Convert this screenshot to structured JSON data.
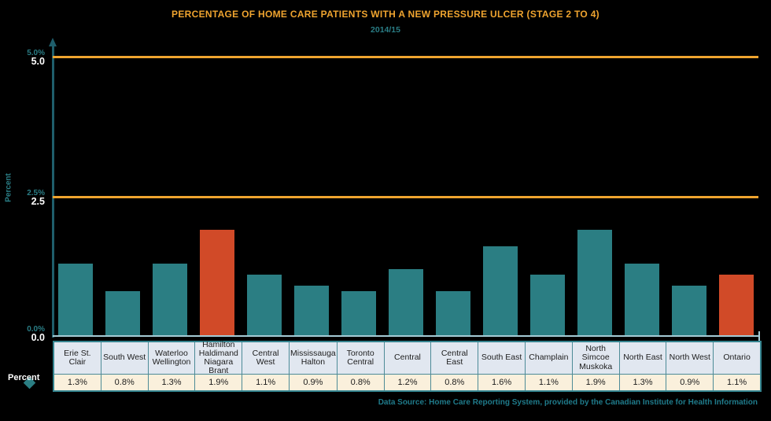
{
  "title": "PERCENTAGE OF HOME CARE PATIENTS WITH A NEW PRESSURE ULCER (STAGE 2 TO 4)",
  "subtitle": "2014/15",
  "axis": {
    "y_label": "Percent",
    "ticks_teal": [
      "5.0%",
      "2.5%",
      "0.0%"
    ],
    "ticks_white": [
      "5.0",
      "2.5",
      "0.0"
    ]
  },
  "legend": {
    "label": "Percent"
  },
  "footer": {
    "datasource": "Data Source: Home Care Reporting System, provided by the Canadian Institute for Health Information"
  },
  "chart_data": {
    "type": "bar",
    "title": "PERCENTAGE OF HOME CARE PATIENTS WITH A NEW PRESSURE ULCER (STAGE 2 TO 4)",
    "subtitle": "2014/15",
    "ylabel": "Percent",
    "ylim": [
      0,
      5
    ],
    "gridlines": [
      2.5,
      5.0
    ],
    "grid_on": true,
    "legend_position": "none",
    "categories": [
      "Erie St. Clair",
      "South West",
      "Waterloo Wellington",
      "Hamilton Haldimand Niagara Brant",
      "Central West",
      "Mississauga Halton",
      "Toronto Central",
      "Central",
      "Central East",
      "South East",
      "Champlain",
      "North Simcoe Muskoka",
      "North East",
      "North West",
      "Ontario"
    ],
    "values": [
      1.3,
      0.8,
      1.3,
      1.9,
      1.1,
      0.9,
      0.8,
      1.2,
      0.8,
      1.6,
      1.1,
      1.9,
      1.3,
      0.9,
      1.1
    ],
    "value_labels": [
      "1.3%",
      "0.8%",
      "1.3%",
      "1.9%",
      "1.1%",
      "0.9%",
      "0.8%",
      "1.2%",
      "0.8%",
      "1.6%",
      "1.1%",
      "1.9%",
      "1.3%",
      "0.9%",
      "1.1%"
    ],
    "highlight_indices": [
      3,
      14
    ]
  },
  "colors": {
    "title_color": "#efa42f",
    "grid_color": "#efa42f",
    "teal_text": "#2a7d85",
    "teal_text_bright": "#1f7b8b",
    "axis_color": "#1f5e6b",
    "baseline_color": "#a5cbd5",
    "bar_color": "#2b7e83",
    "bar_highlight_color": "#d14a28",
    "table_outer_border": "#35848f",
    "table_inner_border": "#4d8b97",
    "table_header_bg": "#e1e7f0",
    "table_value_bg": "#faf0dc"
  }
}
